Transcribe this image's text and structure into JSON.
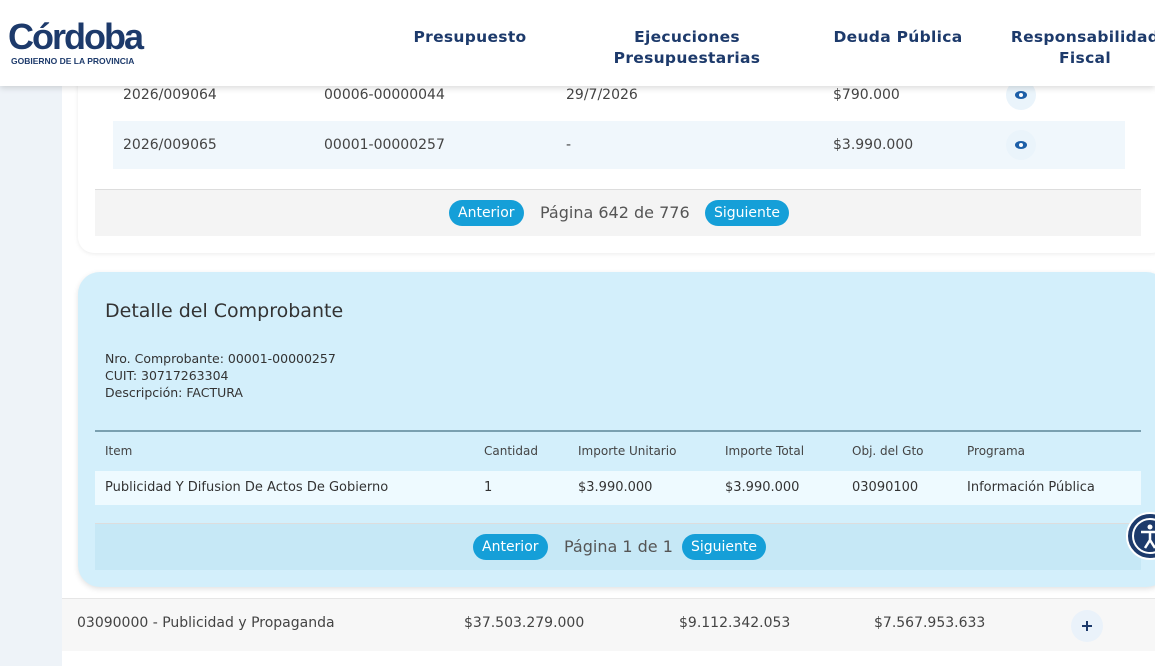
{
  "header": {
    "logo_title": "Córdoba",
    "logo_subtitle": "GOBIERNO DE LA PROVINCIA",
    "nav": [
      "Presupuesto",
      "Ejecuciones Presupuestarias",
      "Deuda Pública",
      "Responsabilidad Fiscal"
    ]
  },
  "table": {
    "rows": [
      [
        "2026/009064",
        "00006-00000044",
        "29/7/2026",
        "$790.000"
      ],
      [
        "2026/009065",
        "00001-00000257",
        "-",
        "$3.990.000"
      ]
    ],
    "pagination": {
      "previous": "Anterior",
      "text": "Página 642 de 776",
      "next": "Siguiente"
    }
  },
  "detail": {
    "title": "Detalle del Comprobante",
    "fields": [
      "Nro. Comprobante: 00001-00000257",
      "CUIT: 30717263304",
      "Descripción: FACTURA"
    ],
    "columns": [
      "Item",
      "Cantidad",
      "Importe Unitario",
      "Importe Total",
      "Obj. del Gto",
      "Programa"
    ],
    "rows": [
      [
        "Publicidad Y Difusion De Actos De Gobierno",
        "1",
        "$3.990.000",
        "$3.990.000",
        "03090100",
        "Información Pública"
      ]
    ],
    "pagination": {
      "previous": "Anterior",
      "text": "Página 1 de 1",
      "next": "Siguiente"
    }
  },
  "summary_row": [
    "03090000 - Publicidad y Propaganda",
    "$37.503.279.000",
    "$9.112.342.053",
    "$7.567.953.633"
  ]
}
